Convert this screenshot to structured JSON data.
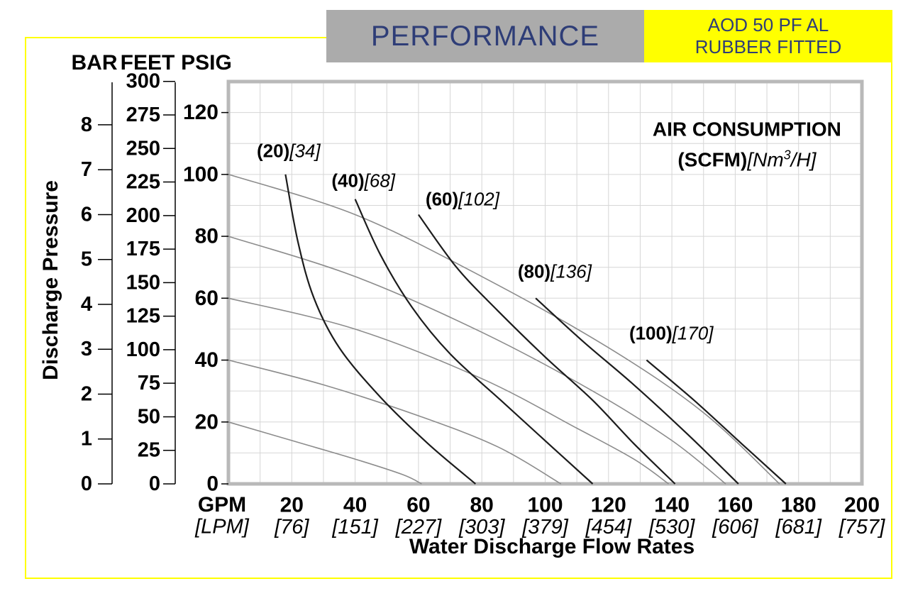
{
  "header": {
    "performance_title": "PERFORMANCE",
    "model_line1": "AOD 50 PF AL",
    "model_line2": "RUBBER FITTED"
  },
  "colors": {
    "brand_blue": "#2e3d77",
    "header_gray": "#ababab",
    "highlight_yellow": "#ffff00",
    "grid": "#d6d6d6",
    "plot_border": "#b9b9b9",
    "pressure_curve": "#8c8c8c",
    "air_curve": "#1c1c1c",
    "text": "#000000"
  },
  "chart_data": {
    "type": "line",
    "title": "PERFORMANCE — AOD 50 PF AL RUBBER FITTED",
    "x_axis_title": "Water Discharge Flow Rates",
    "y_axis_title": "Discharge Pressure",
    "x_axis": {
      "header_primary": "GPM",
      "header_secondary": "[LPM]",
      "ticks_gpm": [
        20,
        40,
        60,
        80,
        100,
        120,
        140,
        160,
        180,
        200
      ],
      "ticks_lpm": [
        "[76]",
        "[151]",
        "[227]",
        "[303]",
        "[379]",
        "[454]",
        "[530]",
        "[606]",
        "[681]",
        "[757]"
      ],
      "xlim_gpm": [
        0,
        200
      ],
      "grid_step_gpm": 10
    },
    "y_axes": {
      "bar": {
        "header": "BAR",
        "ticks": [
          0,
          1,
          2,
          3,
          4,
          5,
          6,
          7,
          8
        ],
        "psi_per_unit": 14.5038
      },
      "feet": {
        "header": "FEET",
        "ticks": [
          0,
          25,
          50,
          75,
          100,
          125,
          150,
          175,
          200,
          225,
          250,
          275,
          300
        ],
        "psi_per_unit": 0.433527
      },
      "psig": {
        "header": "PSIG",
        "ticks": [
          0,
          20,
          40,
          60,
          80,
          100,
          120
        ],
        "ylim_psig": [
          0,
          130
        ],
        "grid_step_psig": 10
      }
    },
    "annotation": {
      "line1": "AIR CONSUMPTION",
      "line2_bold": "(SCFM)",
      "line2_italic_open": "[Nm",
      "line2_sup": "3",
      "line2_italic_close": "/H]",
      "anchor_gpm_psig": [
        163.7,
        109.5
      ]
    },
    "pressure_curves": [
      {
        "name": "100 PSIG inlet",
        "points_gpm_psig": [
          [
            0,
            100
          ],
          [
            40,
            87
          ],
          [
            80,
            67
          ],
          [
            120,
            44
          ],
          [
            150,
            23
          ],
          [
            174,
            0
          ]
        ]
      },
      {
        "name": "80 PSIG inlet",
        "points_gpm_psig": [
          [
            0,
            80
          ],
          [
            40,
            67
          ],
          [
            80,
            49
          ],
          [
            115,
            30
          ],
          [
            140,
            14
          ],
          [
            157,
            0
          ]
        ]
      },
      {
        "name": "60 PSIG inlet",
        "points_gpm_psig": [
          [
            0,
            60
          ],
          [
            40,
            50
          ],
          [
            80,
            34
          ],
          [
            110,
            18
          ],
          [
            128,
            8
          ],
          [
            139,
            0
          ]
        ]
      },
      {
        "name": "40 PSIG inlet",
        "points_gpm_psig": [
          [
            0,
            40
          ],
          [
            30,
            32
          ],
          [
            60,
            22
          ],
          [
            85,
            12
          ],
          [
            105,
            0
          ]
        ]
      },
      {
        "name": "20 PSIG inlet",
        "points_gpm_psig": [
          [
            0,
            20
          ],
          [
            20,
            14
          ],
          [
            40,
            8
          ],
          [
            55,
            3
          ],
          [
            61,
            0
          ]
        ]
      }
    ],
    "air_consumption_curves": [
      {
        "scfm": 20,
        "nm3_per_h": 34,
        "label_bold": "(20)",
        "label_italic": "[34]",
        "label_anchor_gpm_psig": [
          19.0,
          107.5
        ],
        "points_gpm_psig": [
          [
            18,
            100
          ],
          [
            22,
            78
          ],
          [
            27,
            60
          ],
          [
            35,
            44
          ],
          [
            48,
            28
          ],
          [
            63,
            13
          ],
          [
            78,
            0
          ]
        ]
      },
      {
        "scfm": 40,
        "nm3_per_h": 68,
        "label_bold": "(40)",
        "label_italic": "[68]",
        "label_anchor_gpm_psig": [
          42.6,
          97.9
        ],
        "points_gpm_psig": [
          [
            40,
            92
          ],
          [
            48,
            74
          ],
          [
            58,
            57
          ],
          [
            70,
            42
          ],
          [
            86,
            27
          ],
          [
            101,
            13
          ],
          [
            115,
            0
          ]
        ]
      },
      {
        "scfm": 60,
        "nm3_per_h": 102,
        "label_bold": "(60)",
        "label_italic": "[102]",
        "label_anchor_gpm_psig": [
          73.9,
          91.9
        ],
        "points_gpm_psig": [
          [
            60,
            87
          ],
          [
            72,
            70
          ],
          [
            85,
            56
          ],
          [
            100,
            41
          ],
          [
            115,
            27
          ],
          [
            128,
            13
          ],
          [
            141,
            0
          ]
        ]
      },
      {
        "scfm": 80,
        "nm3_per_h": 136,
        "label_bold": "(80)",
        "label_italic": "[136]",
        "label_anchor_gpm_psig": [
          103.0,
          68.6
        ],
        "points_gpm_psig": [
          [
            97,
            60
          ],
          [
            112,
            46
          ],
          [
            128,
            32
          ],
          [
            145,
            16
          ],
          [
            161,
            0
          ]
        ]
      },
      {
        "scfm": 100,
        "nm3_per_h": 170,
        "label_bold": "(100)",
        "label_italic": "[170]",
        "label_anchor_gpm_psig": [
          139.8,
          48.6
        ],
        "points_gpm_psig": [
          [
            132,
            40
          ],
          [
            147,
            27
          ],
          [
            162,
            13
          ],
          [
            176,
            0
          ]
        ]
      }
    ],
    "legend_position": "none",
    "grid": true
  }
}
